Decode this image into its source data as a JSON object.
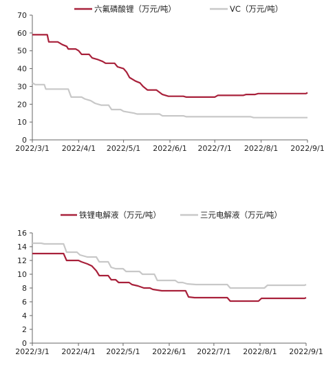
{
  "chart_data": [
    {
      "type": "line",
      "title": "",
      "xlabel": "",
      "ylabel": "",
      "x_ticks": [
        "2022/3/1",
        "2022/4/1",
        "2022/5/1",
        "2022/6/1",
        "2022/7/1",
        "2022/8/1",
        "2022/9/1"
      ],
      "ylim": [
        0,
        70
      ],
      "y_ticks": [
        0,
        10,
        20,
        30,
        40,
        50,
        60,
        70
      ],
      "grid": false,
      "legend_placement": "top-center",
      "series": [
        {
          "name": "六氟磷酸锂（万元/吨）",
          "color": "#a8203a",
          "points": [
            [
              "2022/3/1",
              59
            ],
            [
              "2022/3/11",
              59
            ],
            [
              "2022/3/12",
              55
            ],
            [
              "2022/3/18",
              55
            ],
            [
              "2022/3/21",
              53.5
            ],
            [
              "2022/3/24",
              52.5
            ],
            [
              "2022/3/25",
              51
            ],
            [
              "2022/3/30",
              51
            ],
            [
              "2022/4/1",
              50
            ],
            [
              "2022/4/3",
              48
            ],
            [
              "2022/4/8",
              48
            ],
            [
              "2022/4/10",
              46
            ],
            [
              "2022/4/14",
              45
            ],
            [
              "2022/4/17",
              44
            ],
            [
              "2022/4/19",
              43
            ],
            [
              "2022/4/25",
              43
            ],
            [
              "2022/4/27",
              41
            ],
            [
              "2022/5/1",
              40
            ],
            [
              "2022/5/3",
              38
            ],
            [
              "2022/5/5",
              35
            ],
            [
              "2022/5/9",
              33
            ],
            [
              "2022/5/12",
              32
            ],
            [
              "2022/5/14",
              30
            ],
            [
              "2022/5/17",
              28
            ],
            [
              "2022/5/23",
              28
            ],
            [
              "2022/5/27",
              25.5
            ],
            [
              "2022/5/31",
              24.5
            ],
            [
              "2022/6/10",
              24.5
            ],
            [
              "2022/6/12",
              24
            ],
            [
              "2022/7/1",
              24
            ],
            [
              "2022/7/3",
              25
            ],
            [
              "2022/7/20",
              25
            ],
            [
              "2022/7/22",
              25.5
            ],
            [
              "2022/7/28",
              25.5
            ],
            [
              "2022/7/30",
              26
            ],
            [
              "2022/8/31",
              26
            ],
            [
              "2022/9/1",
              26.5
            ]
          ]
        },
        {
          "name": "VC（万元/吨）",
          "color": "#c8c8c8",
          "points": [
            [
              "2022/3/1",
              32
            ],
            [
              "2022/3/3",
              31
            ],
            [
              "2022/3/9",
              31
            ],
            [
              "2022/3/10",
              28.5
            ],
            [
              "2022/3/25",
              28.5
            ],
            [
              "2022/3/27",
              24
            ],
            [
              "2022/4/3",
              24
            ],
            [
              "2022/4/5",
              23
            ],
            [
              "2022/4/9",
              22
            ],
            [
              "2022/4/12",
              20.5
            ],
            [
              "2022/4/16",
              19.5
            ],
            [
              "2022/4/21",
              19.5
            ],
            [
              "2022/4/23",
              17
            ],
            [
              "2022/4/29",
              17
            ],
            [
              "2022/5/1",
              16
            ],
            [
              "2022/5/8",
              15
            ],
            [
              "2022/5/10",
              14.5
            ],
            [
              "2022/5/25",
              14.5
            ],
            [
              "2022/5/27",
              13.5
            ],
            [
              "2022/6/10",
              13.5
            ],
            [
              "2022/6/12",
              13
            ],
            [
              "2022/7/25",
              13
            ],
            [
              "2022/7/27",
              12.5
            ],
            [
              "2022/9/1",
              12.5
            ]
          ]
        }
      ]
    },
    {
      "type": "line",
      "title": "",
      "xlabel": "",
      "ylabel": "",
      "x_ticks": [
        "2022/3/1",
        "2022/4/1",
        "2022/5/1",
        "2022/6/1",
        "2022/7/1",
        "2022/8/1",
        "2022/9/1"
      ],
      "ylim": [
        0,
        16
      ],
      "y_ticks": [
        0,
        2,
        4,
        6,
        8,
        10,
        12,
        14,
        16
      ],
      "grid": false,
      "legend_placement": "top-center",
      "series": [
        {
          "name": "铁锂电解液（万元/吨）",
          "color": "#a8203a",
          "points": [
            [
              "2022/3/1",
              13
            ],
            [
              "2022/3/22",
              13
            ],
            [
              "2022/3/24",
              12
            ],
            [
              "2022/4/1",
              12
            ],
            [
              "2022/4/3",
              11.8
            ],
            [
              "2022/4/7",
              11.5
            ],
            [
              "2022/4/10",
              11.2
            ],
            [
              "2022/4/13",
              10.5
            ],
            [
              "2022/4/15",
              9.8
            ],
            [
              "2022/4/21",
              9.8
            ],
            [
              "2022/4/23",
              9.2
            ],
            [
              "2022/4/26",
              9.2
            ],
            [
              "2022/4/28",
              8.8
            ],
            [
              "2022/5/5",
              8.8
            ],
            [
              "2022/5/7",
              8.5
            ],
            [
              "2022/5/11",
              8.3
            ],
            [
              "2022/5/15",
              8
            ],
            [
              "2022/5/19",
              8
            ],
            [
              "2022/5/21",
              7.8
            ],
            [
              "2022/5/27",
              7.6
            ],
            [
              "2022/6/12",
              7.6
            ],
            [
              "2022/6/14",
              6.7
            ],
            [
              "2022/6/18",
              6.6
            ],
            [
              "2022/7/10",
              6.6
            ],
            [
              "2022/7/12",
              6.1
            ],
            [
              "2022/7/31",
              6.1
            ],
            [
              "2022/8/2",
              6.5
            ],
            [
              "2022/8/31",
              6.5
            ],
            [
              "2022/9/1",
              6.6
            ]
          ]
        },
        {
          "name": "三元电解液（万元/吨）",
          "color": "#c8c8c8",
          "points": [
            [
              "2022/3/1",
              14.5
            ],
            [
              "2022/3/7",
              14.5
            ],
            [
              "2022/3/9",
              14.4
            ],
            [
              "2022/3/22",
              14.4
            ],
            [
              "2022/3/24",
              13.2
            ],
            [
              "2022/3/31",
              13.2
            ],
            [
              "2022/4/2",
              12.8
            ],
            [
              "2022/4/7",
              12.5
            ],
            [
              "2022/4/13",
              12.5
            ],
            [
              "2022/4/15",
              11.8
            ],
            [
              "2022/4/21",
              11.8
            ],
            [
              "2022/4/23",
              11
            ],
            [
              "2022/4/26",
              10.8
            ],
            [
              "2022/5/1",
              10.8
            ],
            [
              "2022/5/3",
              10.4
            ],
            [
              "2022/5/12",
              10.4
            ],
            [
              "2022/5/14",
              10
            ],
            [
              "2022/5/22",
              10
            ],
            [
              "2022/5/24",
              9.1
            ],
            [
              "2022/6/5",
              9.1
            ],
            [
              "2022/6/7",
              8.8
            ],
            [
              "2022/6/10",
              8.8
            ],
            [
              "2022/6/13",
              8.6
            ],
            [
              "2022/6/19",
              8.5
            ],
            [
              "2022/7/10",
              8.5
            ],
            [
              "2022/7/12",
              8
            ],
            [
              "2022/8/4",
              8
            ],
            [
              "2022/8/6",
              8.4
            ],
            [
              "2022/8/31",
              8.4
            ],
            [
              "2022/9/1",
              8.5
            ]
          ]
        }
      ]
    }
  ]
}
